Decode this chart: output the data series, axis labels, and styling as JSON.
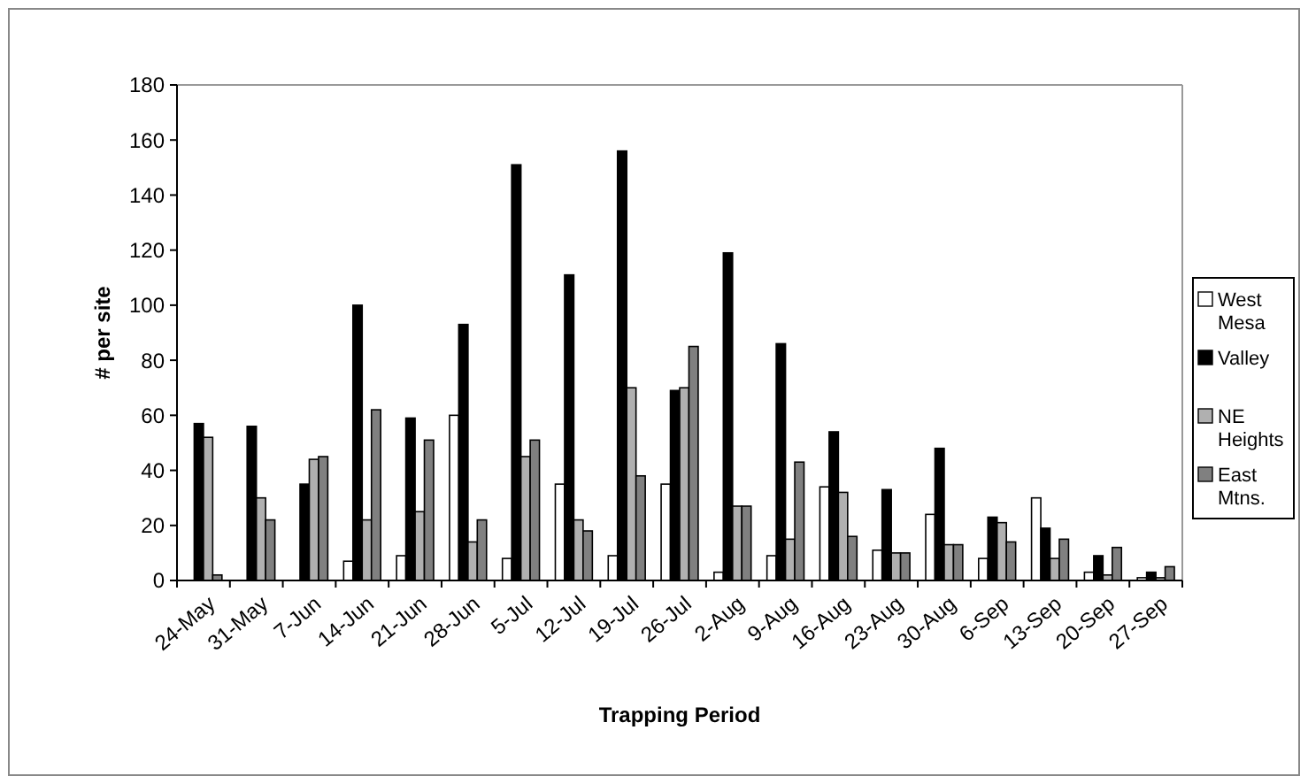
{
  "chart_data": {
    "type": "bar",
    "xlabel": "Trapping Period",
    "ylabel": "# per site",
    "categories": [
      "24-May",
      "31-May",
      "7-Jun",
      "14-Jun",
      "21-Jun",
      "28-Jun",
      "5-Jul",
      "12-Jul",
      "19-Jul",
      "26-Jul",
      "2-Aug",
      "9-Aug",
      "16-Aug",
      "23-Aug",
      "30-Aug",
      "6-Sep",
      "13-Sep",
      "20-Sep",
      "27-Sep"
    ],
    "series": [
      {
        "name": "West Mesa",
        "color": "#ffffff",
        "values": [
          null,
          null,
          null,
          7,
          9,
          60,
          8,
          35,
          9,
          35,
          3,
          9,
          34,
          11,
          24,
          8,
          30,
          3,
          1
        ]
      },
      {
        "name": "Valley",
        "color": "#000000",
        "values": [
          57,
          56,
          35,
          100,
          59,
          93,
          151,
          111,
          156,
          69,
          119,
          86,
          54,
          33,
          48,
          23,
          19,
          9,
          3
        ]
      },
      {
        "name": "NE Heights",
        "color": "#b0b0b0",
        "values": [
          52,
          30,
          44,
          22,
          25,
          14,
          45,
          22,
          70,
          70,
          27,
          15,
          32,
          10,
          13,
          21,
          8,
          2,
          1
        ]
      },
      {
        "name": "East Mtns.",
        "color": "#808080",
        "values": [
          2,
          22,
          45,
          62,
          51,
          22,
          51,
          18,
          38,
          85,
          27,
          43,
          16,
          10,
          13,
          14,
          15,
          12,
          5
        ]
      }
    ],
    "ylim": [
      0,
      180
    ],
    "yticks": [
      0,
      20,
      40,
      60,
      80,
      100,
      120,
      140,
      160,
      180
    ],
    "grid": false,
    "legend": "right"
  }
}
